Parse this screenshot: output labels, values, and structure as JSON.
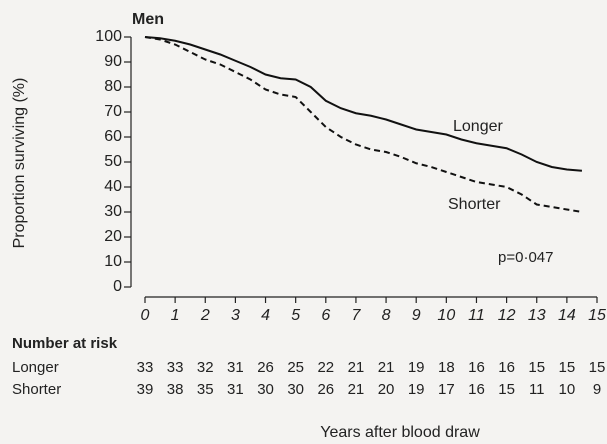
{
  "chart_data": {
    "type": "line",
    "title": "Men",
    "x_label": "Years after blood draw",
    "y_label": "Proportion surviving (%)",
    "x": [
      0,
      0.5,
      1,
      1.5,
      2,
      2.5,
      3,
      3.5,
      4,
      4.5,
      5,
      5.5,
      6,
      6.5,
      7,
      7.5,
      8,
      8.5,
      9,
      9.5,
      10,
      10.5,
      11,
      11.5,
      12,
      12.5,
      13,
      13.5,
      14,
      14.5
    ],
    "series": [
      {
        "name": "Longer",
        "color": "#111111",
        "dash": false,
        "values": [
          100,
          99.5,
          98.5,
          97,
          95,
          93,
          90.5,
          88,
          85,
          83.5,
          83,
          80,
          74.5,
          71.5,
          69.5,
          68.5,
          67,
          65,
          63,
          62,
          61,
          59,
          57.5,
          56.5,
          55.5,
          53,
          50,
          48,
          47,
          46.5
        ]
      },
      {
        "name": "Shorter",
        "color": "#111111",
        "dash": true,
        "values": [
          100,
          99,
          97,
          94,
          91,
          89,
          86,
          83,
          79,
          77,
          76,
          70,
          64,
          60,
          57,
          55,
          54,
          52,
          49.5,
          48,
          46,
          44,
          42,
          41,
          40,
          37,
          33,
          32,
          31,
          30
        ]
      }
    ],
    "xlim": [
      0,
      15
    ],
    "xticks": [
      0,
      1,
      2,
      3,
      4,
      5,
      6,
      7,
      8,
      9,
      10,
      11,
      12,
      13,
      14,
      15
    ],
    "ylim": [
      0,
      100
    ],
    "yticks": [
      0,
      10,
      20,
      30,
      40,
      50,
      60,
      70,
      80,
      90,
      100
    ],
    "annotations": [
      "p=0·047"
    ],
    "risk_table": {
      "title": "Number at risk",
      "rows": [
        {
          "name": "Longer",
          "values": [
            33,
            33,
            32,
            31,
            26,
            25,
            22,
            21,
            21,
            19,
            18,
            16,
            16,
            15,
            15,
            15
          ]
        },
        {
          "name": "Shorter",
          "values": [
            39,
            38,
            35,
            31,
            30,
            30,
            26,
            21,
            20,
            19,
            17,
            16,
            15,
            11,
            10,
            9
          ]
        }
      ]
    }
  }
}
